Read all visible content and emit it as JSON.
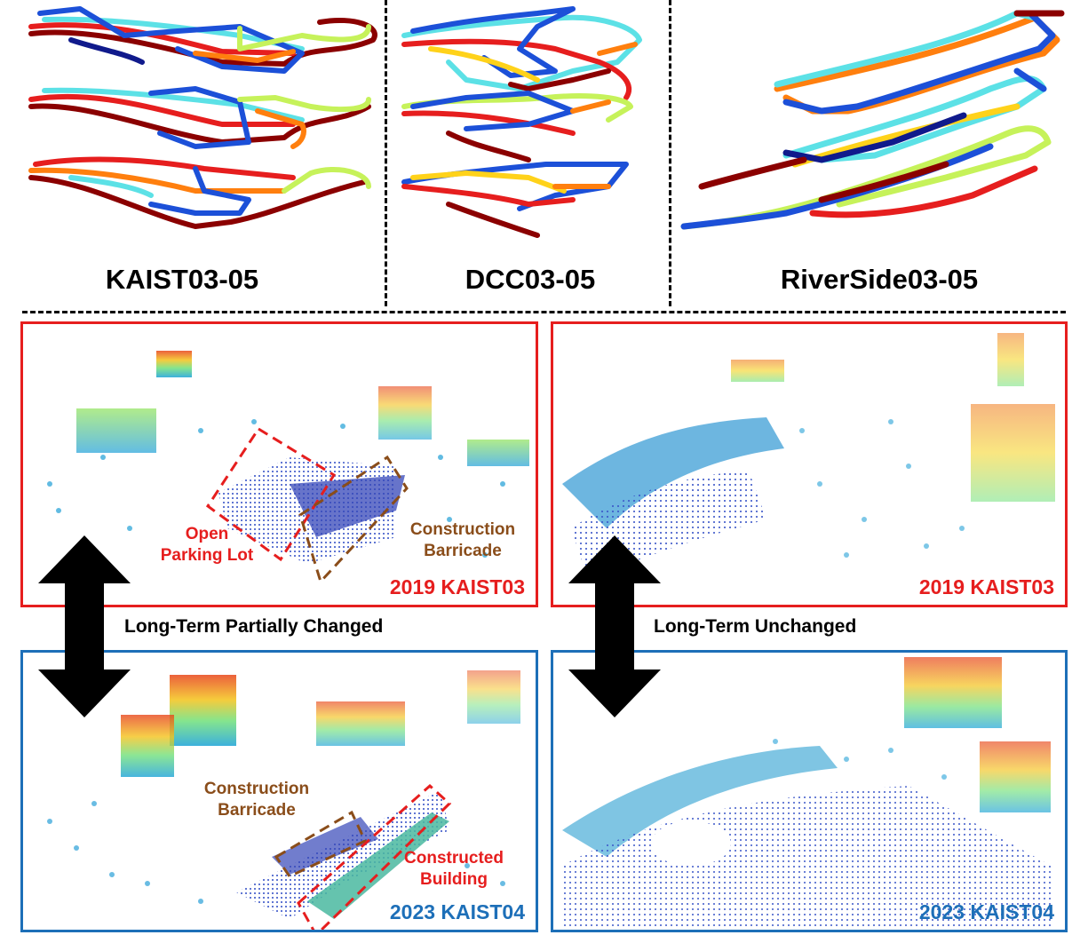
{
  "datasets": [
    {
      "label": "KAIST03-05"
    },
    {
      "label": "DCC03-05"
    },
    {
      "label": "RiverSide03-05"
    }
  ],
  "comparisons": [
    {
      "label": "Long-Term Partially Changed"
    },
    {
      "label": "Long-Term Unchanged"
    }
  ],
  "panels": {
    "top_left": {
      "caption": "2019 KAIST03"
    },
    "top_right": {
      "caption": "2019 KAIST03"
    },
    "bottom_left": {
      "caption": "2023 KAIST04"
    },
    "bottom_right": {
      "caption": "2023 KAIST04"
    }
  },
  "annotations": {
    "open_parking_lot": {
      "line1": "Open",
      "line2": "Parking Lot"
    },
    "barricade_2019": {
      "line1": "Construction",
      "line2": "Barricade"
    },
    "barricade_2023": {
      "line1": "Construction",
      "line2": "Barricade"
    },
    "constructed_building": {
      "line1": "Constructed",
      "line2": "Building"
    }
  },
  "colors": {
    "red_frame": "#e61e1e",
    "blue_frame": "#1d6fb8",
    "brown_annotation": "#8a4d1a",
    "trajectory": [
      "#8b0000",
      "#e61e1e",
      "#ff7f0e",
      "#ffd21a",
      "#c6f25a",
      "#5ce1e6",
      "#1c50d8",
      "#101a8c"
    ]
  }
}
